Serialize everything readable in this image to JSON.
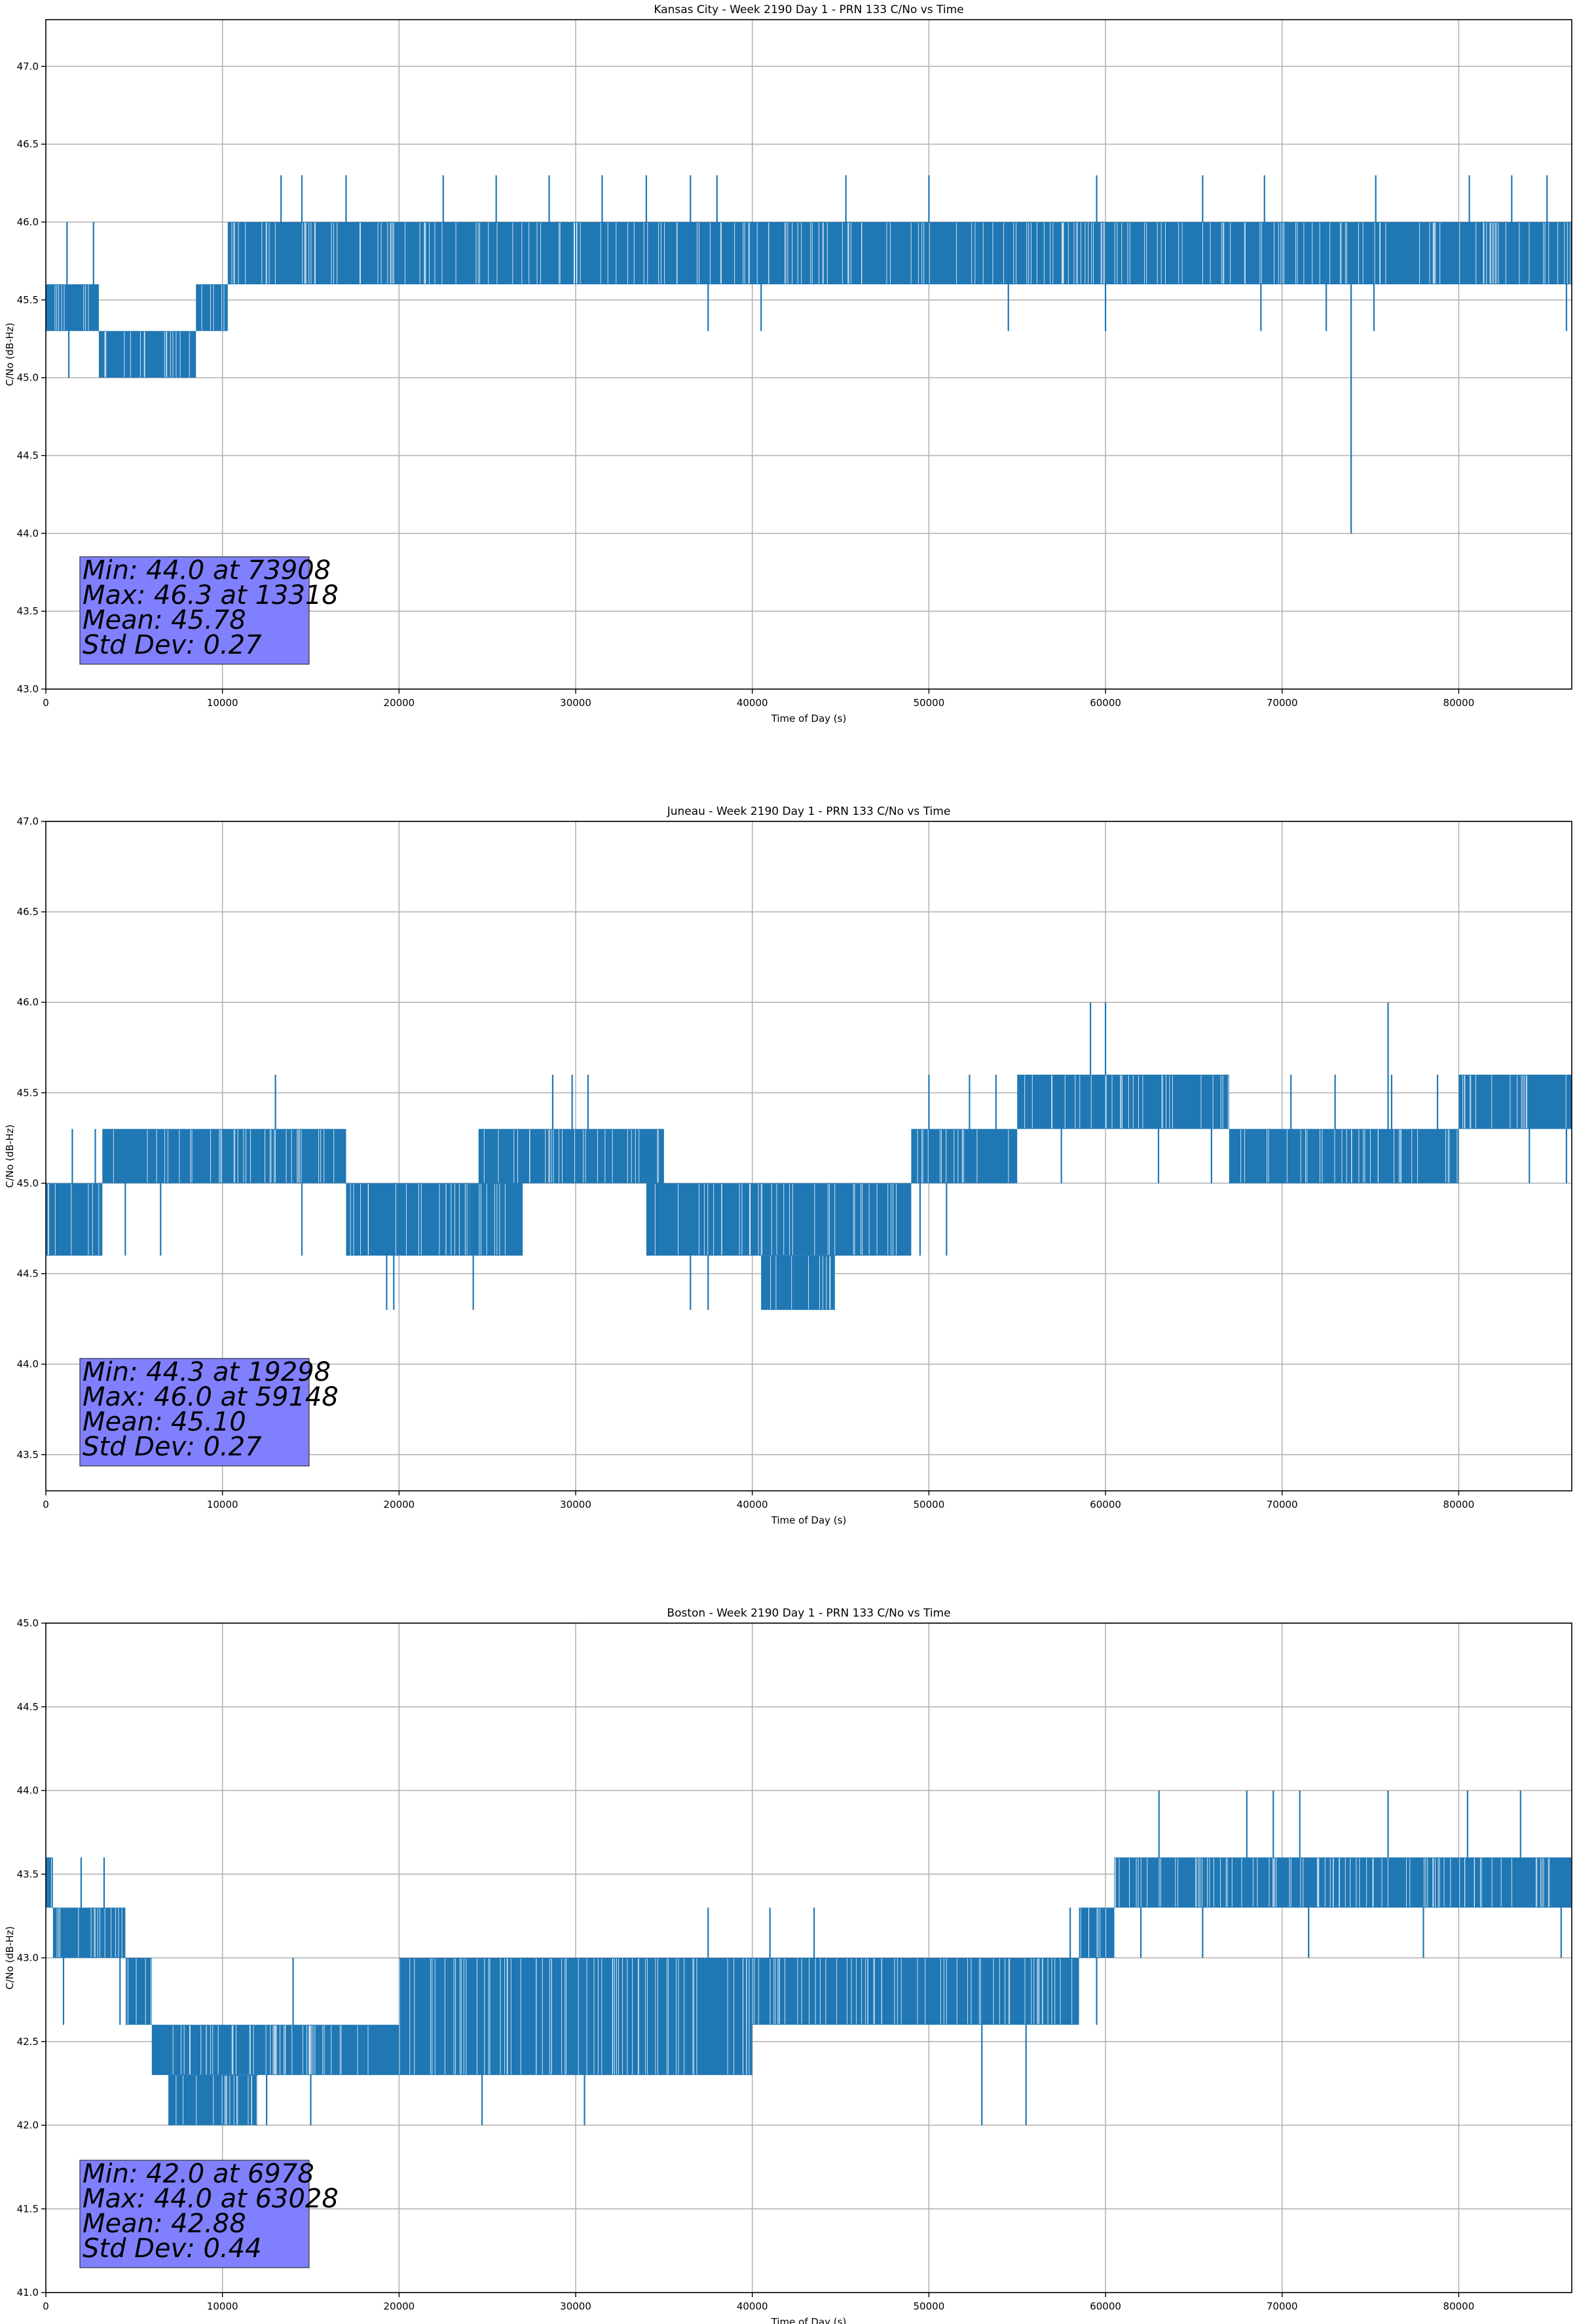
{
  "figure": {
    "line_color": "#1f77b4",
    "box_color": "#8080ff",
    "grid_color": "#b0b0b0"
  },
  "chart_data": [
    {
      "type": "line",
      "title": "Kansas City - Week 2190 Day 1 - PRN 133 C/No vs Time",
      "xlabel": "Time of Day (s)",
      "ylabel": "C/No (dB-Hz)",
      "xlim": [
        0,
        86400
      ],
      "ylim": [
        43.0,
        47.3
      ],
      "xticks": [
        0,
        10000,
        20000,
        30000,
        40000,
        50000,
        60000,
        70000,
        80000
      ],
      "yticks": [
        "43.0",
        "43.5",
        "44.0",
        "44.5",
        "45.0",
        "45.5",
        "46.0",
        "46.5",
        "47.0"
      ],
      "grid": true,
      "stats": [
        "Min: 44.0 at 73908",
        "Max: 46.3 at 13318",
        "Mean: 45.78",
        "Std Dev: 0.27"
      ],
      "series": [
        {
          "bands": [
            [
              0,
              3000,
              45.3,
              45.6
            ],
            [
              3000,
              8500,
              45.0,
              45.3
            ],
            [
              8500,
              10300,
              45.3,
              45.6
            ],
            [
              10300,
              86400,
              45.6,
              46.0
            ]
          ],
          "spikes": [
            [
              73908,
              44.0
            ],
            [
              13318,
              46.3
            ],
            [
              14500,
              46.3
            ],
            [
              17000,
              46.3
            ],
            [
              22500,
              46.3
            ],
            [
              25500,
              46.3
            ],
            [
              28500,
              46.3
            ],
            [
              31500,
              46.3
            ],
            [
              34000,
              46.3
            ],
            [
              36500,
              46.3
            ],
            [
              38000,
              46.3
            ],
            [
              45300,
              46.3
            ],
            [
              50000,
              46.3
            ],
            [
              59500,
              46.3
            ],
            [
              65500,
              46.3
            ],
            [
              69000,
              46.3
            ],
            [
              75300,
              46.3
            ],
            [
              80600,
              46.3
            ],
            [
              83000,
              46.3
            ],
            [
              85000,
              46.3
            ],
            [
              37500,
              45.3
            ],
            [
              40500,
              45.3
            ],
            [
              54500,
              45.3
            ],
            [
              60000,
              45.3
            ],
            [
              68800,
              45.3
            ],
            [
              72500,
              45.3
            ],
            [
              75200,
              45.3
            ],
            [
              86100,
              45.3
            ],
            [
              1300,
              45.0
            ],
            [
              5000,
              45.0
            ],
            [
              8400,
              45.0
            ],
            [
              1200,
              46.0
            ],
            [
              2700,
              46.0
            ]
          ],
          "noise": 0.3
        }
      ]
    },
    {
      "type": "line",
      "title": "Juneau - Week 2190 Day 1 - PRN 133 C/No vs Time",
      "xlabel": "Time of Day (s)",
      "ylabel": "C/No (dB-Hz)",
      "xlim": [
        0,
        86400
      ],
      "ylim": [
        43.3,
        47.0
      ],
      "xticks": [
        0,
        10000,
        20000,
        30000,
        40000,
        50000,
        60000,
        70000,
        80000
      ],
      "yticks": [
        "43.5",
        "44.0",
        "44.5",
        "45.0",
        "45.5",
        "46.0",
        "46.5",
        "47.0"
      ],
      "grid": true,
      "stats": [
        "Min: 44.3 at 19298",
        "Max: 46.0 at 59148",
        "Mean: 45.10",
        "Std Dev: 0.27"
      ],
      "series": [
        {
          "bands": [
            [
              0,
              3200,
              44.6,
              45.0
            ],
            [
              3200,
              17000,
              45.0,
              45.3
            ],
            [
              17000,
              24000,
              44.6,
              45.0
            ],
            [
              24000,
              27000,
              44.6,
              45.0
            ],
            [
              24500,
              35000,
              45.0,
              45.3
            ],
            [
              34000,
              49000,
              44.6,
              45.0
            ],
            [
              40500,
              44700,
              44.3,
              44.6
            ],
            [
              49000,
              55000,
              45.0,
              45.3
            ],
            [
              55000,
              67000,
              45.3,
              45.6
            ],
            [
              67000,
              80000,
              45.0,
              45.3
            ],
            [
              80000,
              86400,
              45.3,
              45.6
            ]
          ],
          "spikes": [
            [
              19298,
              44.3
            ],
            [
              19700,
              44.3
            ],
            [
              24200,
              44.3
            ],
            [
              36500,
              44.3
            ],
            [
              37500,
              44.3
            ],
            [
              43000,
              44.3
            ],
            [
              59148,
              46.0
            ],
            [
              60000,
              46.0
            ],
            [
              76000,
              46.0
            ],
            [
              13000,
              45.6
            ],
            [
              28700,
              45.6
            ],
            [
              29800,
              45.6
            ],
            [
              30700,
              45.6
            ],
            [
              50000,
              45.6
            ],
            [
              52300,
              45.6
            ],
            [
              53800,
              45.6
            ],
            [
              70500,
              45.6
            ],
            [
              73000,
              45.6
            ],
            [
              78800,
              45.6
            ],
            [
              76200,
              45.6
            ],
            [
              57500,
              45.0
            ],
            [
              63000,
              45.0
            ],
            [
              66000,
              45.0
            ],
            [
              72000,
              45.0
            ],
            [
              84000,
              45.0
            ],
            [
              86100,
              45.0
            ],
            [
              4500,
              44.6
            ],
            [
              6500,
              44.6
            ],
            [
              14500,
              44.6
            ],
            [
              49500,
              44.6
            ],
            [
              51000,
              44.6
            ],
            [
              1500,
              45.3
            ],
            [
              2800,
              45.3
            ]
          ],
          "noise": 0.25
        }
      ]
    },
    {
      "type": "line",
      "title": "Boston - Week 2190 Day 1 - PRN 133 C/No vs Time",
      "xlabel": "Time of Day (s)",
      "ylabel": "C/No (dB-Hz)",
      "xlim": [
        0,
        86400
      ],
      "ylim": [
        41.0,
        45.0
      ],
      "xticks": [
        0,
        10000,
        20000,
        30000,
        40000,
        50000,
        60000,
        70000,
        80000
      ],
      "yticks": [
        "41.0",
        "41.5",
        "42.0",
        "42.5",
        "43.0",
        "43.5",
        "44.0",
        "44.5",
        "45.0"
      ],
      "grid": true,
      "stats": [
        "Min: 42.0 at 6978",
        "Max: 44.0 at 63028",
        "Mean: 42.88",
        "Std Dev: 0.44"
      ],
      "series": [
        {
          "bands": [
            [
              0,
              400,
              43.3,
              43.6
            ],
            [
              400,
              4500,
              43.0,
              43.3
            ],
            [
              4500,
              6000,
              42.6,
              43.0
            ],
            [
              6000,
              13000,
              42.3,
              42.6
            ],
            [
              7000,
              12000,
              42.0,
              42.3
            ],
            [
              13000,
              20000,
              42.3,
              42.6
            ],
            [
              20000,
              40000,
              42.3,
              43.0
            ],
            [
              40000,
              58500,
              42.6,
              43.0
            ],
            [
              58500,
              60500,
              43.0,
              43.3
            ],
            [
              60500,
              86400,
              43.3,
              43.6
            ]
          ],
          "spikes": [
            [
              6978,
              42.0
            ],
            [
              10500,
              42.0
            ],
            [
              12500,
              42.0
            ],
            [
              15000,
              42.0
            ],
            [
              24700,
              42.0
            ],
            [
              30500,
              42.0
            ],
            [
              53000,
              42.0
            ],
            [
              55500,
              42.0
            ],
            [
              63028,
              44.0
            ],
            [
              68000,
              44.0
            ],
            [
              69500,
              44.0
            ],
            [
              71000,
              44.0
            ],
            [
              76000,
              44.0
            ],
            [
              80500,
              44.0
            ],
            [
              83500,
              44.0
            ],
            [
              2000,
              43.6
            ],
            [
              3300,
              43.6
            ],
            [
              37500,
              43.3
            ],
            [
              41000,
              43.3
            ],
            [
              43500,
              43.3
            ],
            [
              58000,
              43.3
            ],
            [
              1000,
              42.6
            ],
            [
              4200,
              42.6
            ],
            [
              14000,
              43.0
            ],
            [
              62000,
              43.0
            ],
            [
              65500,
              43.0
            ],
            [
              71500,
              43.0
            ],
            [
              78000,
              43.0
            ],
            [
              85800,
              43.0
            ],
            [
              59500,
              42.6
            ]
          ],
          "noise": 0.35
        }
      ]
    }
  ]
}
